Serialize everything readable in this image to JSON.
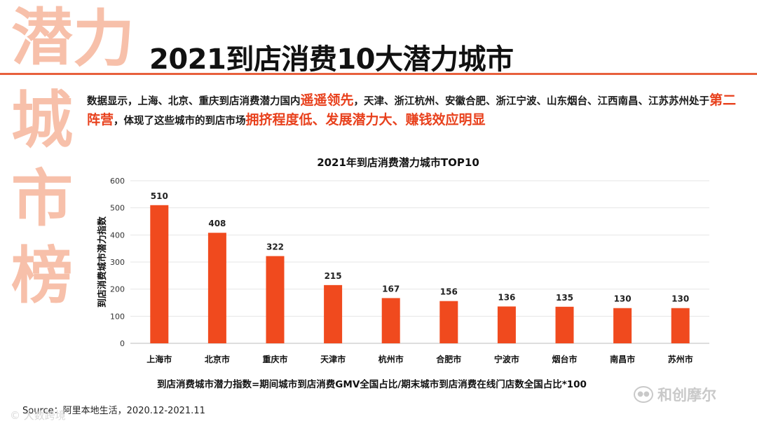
{
  "side_title": [
    "潜",
    "力",
    "城",
    "市",
    "榜"
  ],
  "headline": "2021到店消费10大潜力城市",
  "description": {
    "p1": "数据显示，上海、北京、重庆到店消费潜力国内",
    "hl1": "遥遥领先",
    "p2": "，天津、浙江杭州、安徽合肥、浙江宁波、山东烟台、江西南昌、江苏苏州处于",
    "hl2": "第二阵营",
    "p3": "，体现了这些城市的到店市场",
    "hl3": "拥挤程度低、发展潜力大、赚钱效应明显"
  },
  "chart_data": {
    "type": "bar",
    "title": "2021年到店消费潜力城市TOP10",
    "xlabel": "",
    "ylabel": "到店消费城市潜力指数",
    "categories": [
      "上海市",
      "北京市",
      "重庆市",
      "天津市",
      "杭州市",
      "合肥市",
      "宁波市",
      "烟台市",
      "南昌市",
      "苏州市"
    ],
    "values": [
      510,
      408,
      322,
      215,
      167,
      156,
      136,
      135,
      130,
      130
    ],
    "ylim": [
      0,
      600
    ],
    "yticks": [
      "0",
      "100",
      "200",
      "300",
      "400",
      "500",
      "600"
    ],
    "grid": true,
    "bar_color": "#f04a1e"
  },
  "formula": "到店消费城市潜力指数=期间城市到店消费GMV全国占比/期末城市到店消费在线门店数全国占比*100",
  "source": "Source：阿里本地生活，2020.12-2021.11",
  "watermark_left": "© 大数跨境",
  "watermark_right": "和创摩尔"
}
